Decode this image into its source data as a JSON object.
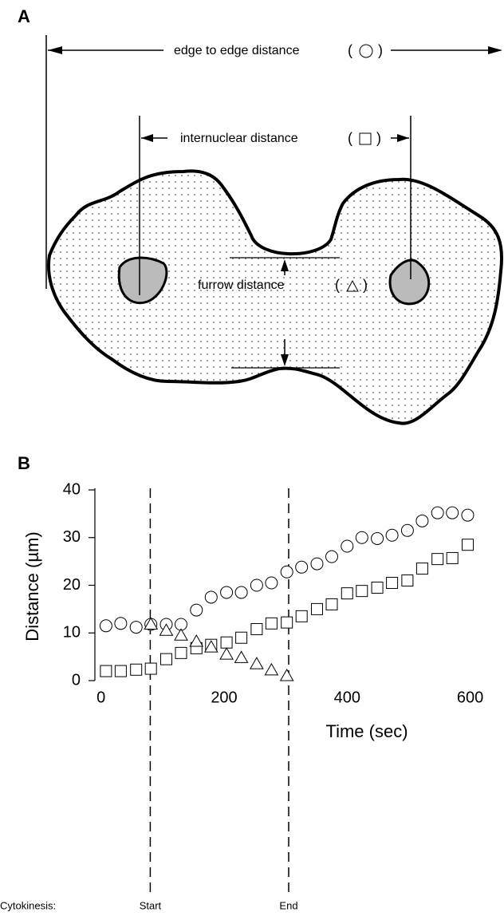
{
  "panel_a": {
    "label": "A",
    "edge_label": "edge to edge distance",
    "internuclear_label": "internuclear distance",
    "furrow_label": "furrow distance"
  },
  "chart_data": {
    "type": "scatter",
    "panel_label": "B",
    "x_label": "Time (sec)",
    "y_label": "Distance (µm)",
    "x": [
      8,
      32,
      57,
      81,
      106,
      130,
      155,
      179,
      204,
      228,
      253,
      277,
      302,
      326,
      351,
      375,
      400,
      424,
      449,
      473,
      498,
      522,
      547,
      571,
      596
    ],
    "series": [
      {
        "marker": "circle",
        "color": "#000000",
        "values": [
          11.5,
          12,
          11.2,
          11.8,
          11.8,
          11.8,
          14.8,
          17.5,
          18.5,
          18.5,
          20,
          20.5,
          22.8,
          23.8,
          24.5,
          26,
          28.2,
          30,
          29.8,
          30.5,
          31.5,
          33.5,
          35.2,
          35.2,
          34.7
        ]
      },
      {
        "marker": "square",
        "color": "#000000",
        "values": [
          2,
          2,
          2.3,
          2.5,
          4.5,
          5.8,
          6.8,
          7.5,
          8,
          9,
          10.8,
          12,
          12.2,
          13.5,
          15,
          16,
          18.3,
          18.8,
          19.5,
          20.5,
          21,
          23.5,
          25.5,
          25.7,
          28.5
        ]
      },
      {
        "marker": "triangle",
        "color": "#000000",
        "values": [
          null,
          null,
          null,
          11.8,
          10.5,
          9.5,
          8.2,
          7,
          5.5,
          4.8,
          3.5,
          2.2,
          1,
          null,
          null,
          null,
          null,
          null,
          null,
          null,
          null,
          null,
          null,
          null,
          null
        ]
      }
    ],
    "xlim": [
      -10,
      620
    ],
    "xticks": [
      0,
      200,
      400,
      600
    ],
    "ylim": [
      0,
      40
    ],
    "yticks": [
      0,
      10,
      20,
      30,
      40
    ],
    "phase_label": "Cytokinesis:",
    "vlines": [
      {
        "x": 80,
        "label": "Start"
      },
      {
        "x": 305,
        "label": "End"
      }
    ]
  }
}
